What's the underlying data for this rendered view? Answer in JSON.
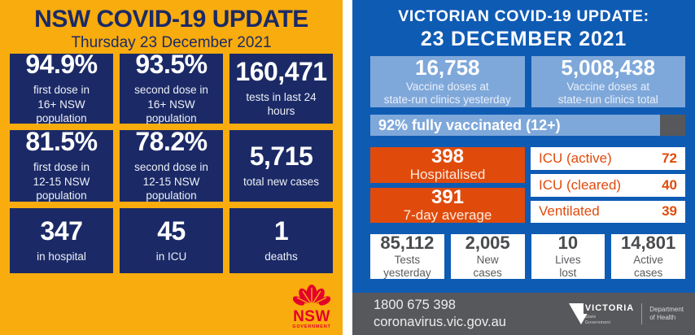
{
  "nsw": {
    "title": "NSW COVID-19 UPDATE",
    "date": "Thursday 23 December 2021",
    "tiles": [
      {
        "value": "94.9%",
        "label_lines": [
          "first dose in",
          "16+ NSW population"
        ]
      },
      {
        "value": "93.5%",
        "label_lines": [
          "second dose in",
          "16+ NSW population"
        ]
      },
      {
        "value": "160,471",
        "label_lines": [
          "tests in last 24 hours"
        ]
      },
      {
        "value": "81.5%",
        "label_lines": [
          "first dose in",
          "12-15 NSW population"
        ]
      },
      {
        "value": "78.2%",
        "label_lines": [
          "second dose in",
          "12-15 NSW population"
        ]
      },
      {
        "value": "5,715",
        "label_lines": [
          "total new cases"
        ]
      },
      {
        "value": "347",
        "label_lines": [
          "in hospital"
        ]
      },
      {
        "value": "45",
        "label_lines": [
          "in ICU"
        ]
      },
      {
        "value": "1",
        "label_lines": [
          "deaths"
        ]
      }
    ],
    "logo": {
      "name": "NSW",
      "sub": "GOVERNMENT"
    }
  },
  "vic": {
    "title_line1": "VICTORIAN COVID-19 UPDATE:",
    "title_line2": "23 DECEMBER 2021",
    "vaccine_boxes": [
      {
        "value": "16,758",
        "label_lines": [
          "Vaccine doses at",
          "state-run clinics yesterday"
        ]
      },
      {
        "value": "5,008,438",
        "label_lines": [
          "Vaccine doses at",
          "state-run clinics total"
        ]
      }
    ],
    "progress": {
      "label": "92% fully vaccinated (12+)",
      "percent": 92
    },
    "hospital_boxes": [
      {
        "value": "398",
        "label": "Hospitalised"
      },
      {
        "value": "391",
        "label": "7-day average"
      }
    ],
    "icu_rows": [
      {
        "label": "ICU (active)",
        "value": "72"
      },
      {
        "label": "ICU (cleared)",
        "value": "40"
      },
      {
        "label": "Ventilated",
        "value": "39"
      }
    ],
    "stat_boxes": [
      {
        "value": "85,112",
        "label_lines": [
          "Tests",
          "yesterday"
        ]
      },
      {
        "value": "2,005",
        "label_lines": [
          "New",
          "cases"
        ]
      },
      {
        "value": "10",
        "label_lines": [
          "Lives",
          "lost"
        ]
      },
      {
        "value": "14,801",
        "label_lines": [
          "Active",
          "cases"
        ]
      }
    ],
    "footer": {
      "phone": "1800 675 398",
      "url": "coronavirus.vic.gov.au",
      "logo_name": "VICTORIA",
      "logo_sub_lines": [
        "State",
        "Government"
      ],
      "dept_lines": [
        "Department",
        "of Health"
      ]
    }
  },
  "colors": {
    "nsw_gold": "#F9AC0D",
    "nsw_navy": "#1B2A66",
    "nsw_red": "#E4002B",
    "vic_blue": "#0E5BB4",
    "vic_light_blue": "#7FA8DA",
    "vic_orange": "#E04B0C",
    "footer_gray": "#57585B",
    "white": "#FFFFFF"
  },
  "chart_data": {
    "type": "table",
    "title": "NSW & Victorian COVID-19 Update — 23 December 2021",
    "tables": [
      {
        "region": "NSW",
        "date": "Thursday 23 December 2021",
        "stats": [
          {
            "label": "first dose in 16+ NSW population",
            "value": 94.9,
            "unit": "%"
          },
          {
            "label": "second dose in 16+ NSW population",
            "value": 93.5,
            "unit": "%"
          },
          {
            "label": "tests in last 24 hours",
            "value": 160471
          },
          {
            "label": "first dose in 12-15 NSW population",
            "value": 81.5,
            "unit": "%"
          },
          {
            "label": "second dose in 12-15 NSW population",
            "value": 78.2,
            "unit": "%"
          },
          {
            "label": "total new cases",
            "value": 5715
          },
          {
            "label": "in hospital",
            "value": 347
          },
          {
            "label": "in ICU",
            "value": 45
          },
          {
            "label": "deaths",
            "value": 1
          }
        ]
      },
      {
        "region": "Victoria",
        "date": "23 December 2021",
        "stats": [
          {
            "label": "Vaccine doses at state-run clinics yesterday",
            "value": 16758
          },
          {
            "label": "Vaccine doses at state-run clinics total",
            "value": 5008438
          },
          {
            "label": "fully vaccinated (12+)",
            "value": 92,
            "unit": "%"
          },
          {
            "label": "Hospitalised",
            "value": 398
          },
          {
            "label": "Hospitalised 7-day average",
            "value": 391
          },
          {
            "label": "ICU (active)",
            "value": 72
          },
          {
            "label": "ICU (cleared)",
            "value": 40
          },
          {
            "label": "Ventilated",
            "value": 39
          },
          {
            "label": "Tests yesterday",
            "value": 85112
          },
          {
            "label": "New cases",
            "value": 2005
          },
          {
            "label": "Lives lost",
            "value": 10
          },
          {
            "label": "Active cases",
            "value": 14801
          }
        ]
      }
    ]
  }
}
